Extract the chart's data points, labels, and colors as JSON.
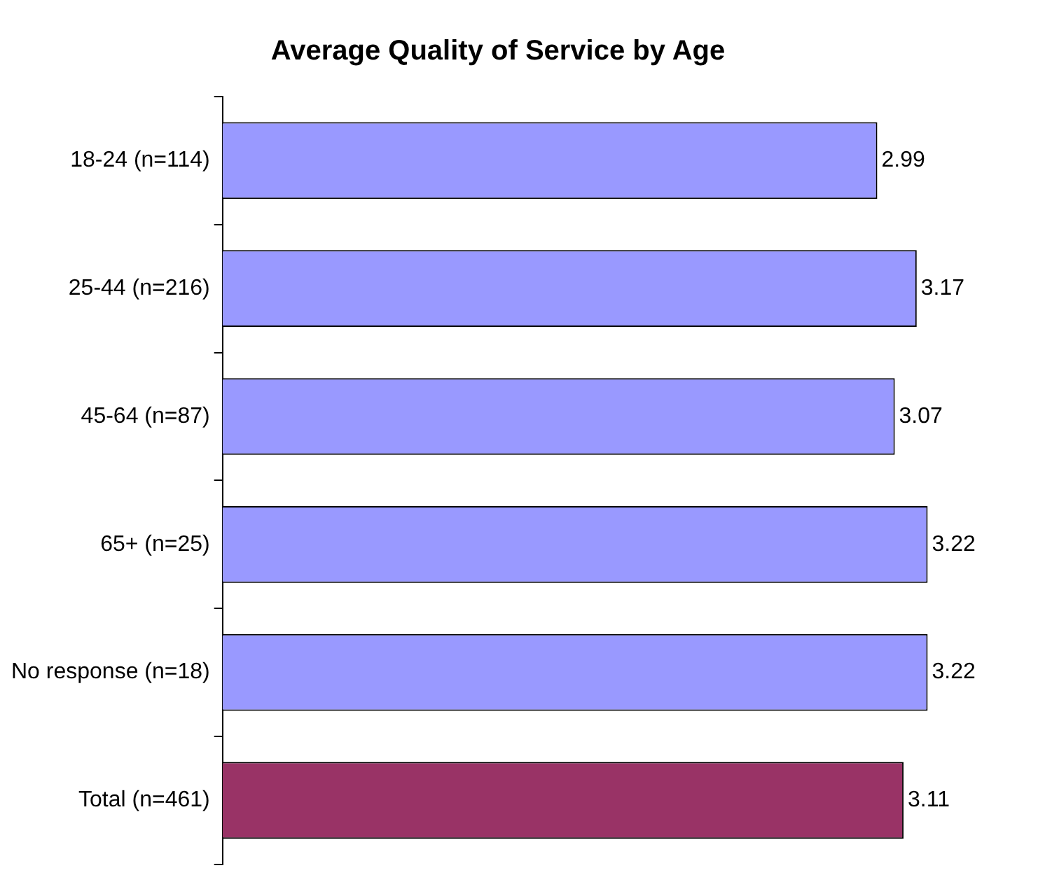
{
  "chart_data": {
    "type": "bar",
    "orientation": "horizontal",
    "title": "Average Quality of Service by Age",
    "categories": [
      "18-24 (n=114)",
      "25-44 (n=216)",
      "45-64 (n=87)",
      "65+ (n=25)",
      "No response (n=18)",
      "Total (n=461)"
    ],
    "values": [
      2.99,
      3.17,
      3.07,
      3.22,
      3.22,
      3.11
    ],
    "colors": [
      "#9999ff",
      "#9999ff",
      "#9999ff",
      "#9999ff",
      "#9999ff",
      "#993366"
    ],
    "data_labels": true,
    "grid": false,
    "legend": false,
    "tick_labels": "y"
  }
}
